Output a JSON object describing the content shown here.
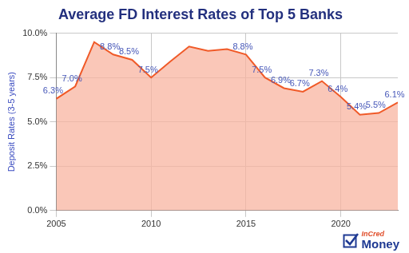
{
  "chart_data": {
    "type": "line",
    "title": "Average FD Interest Rates of Top 5 Banks",
    "y_label": "Deposit Rates (3-5 years)",
    "x": [
      2005,
      2006,
      2007,
      2008,
      2009,
      2010,
      2011,
      2012,
      2013,
      2014,
      2015,
      2016,
      2017,
      2018,
      2019,
      2020,
      2021,
      2022,
      2023
    ],
    "values": [
      6.3,
      7.0,
      9.5,
      8.8,
      8.5,
      7.5,
      8.4,
      9.25,
      9.0,
      9.1,
      8.8,
      7.5,
      6.9,
      6.7,
      7.3,
      6.4,
      5.4,
      5.5,
      6.1
    ],
    "value_labels": [
      "6.3%",
      "7.0%",
      null,
      "8.8%",
      "8.5%",
      "7.5%",
      null,
      null,
      null,
      null,
      "8.8%",
      "7.5%",
      "6.9%",
      "6.7%",
      "7.3%",
      "6.4%",
      "5.4%",
      "5.5%",
      "6.1%"
    ],
    "data_labels": true,
    "color": "#f05a28",
    "xlim": [
      2005,
      2023
    ],
    "xticks": [
      2005,
      2010,
      2015,
      2020
    ],
    "ylim": [
      0,
      10
    ],
    "yticks": [
      {
        "value": 0,
        "label": "0.0%"
      },
      {
        "value": 2.5,
        "label": "2.5%"
      },
      {
        "value": 5,
        "label": "5.0%"
      },
      {
        "value": 7.5,
        "label": "7.5%"
      },
      {
        "value": 10,
        "label": "10.0%"
      }
    ],
    "grid": true,
    "annotations": [
      "InCred",
      "Money"
    ]
  }
}
